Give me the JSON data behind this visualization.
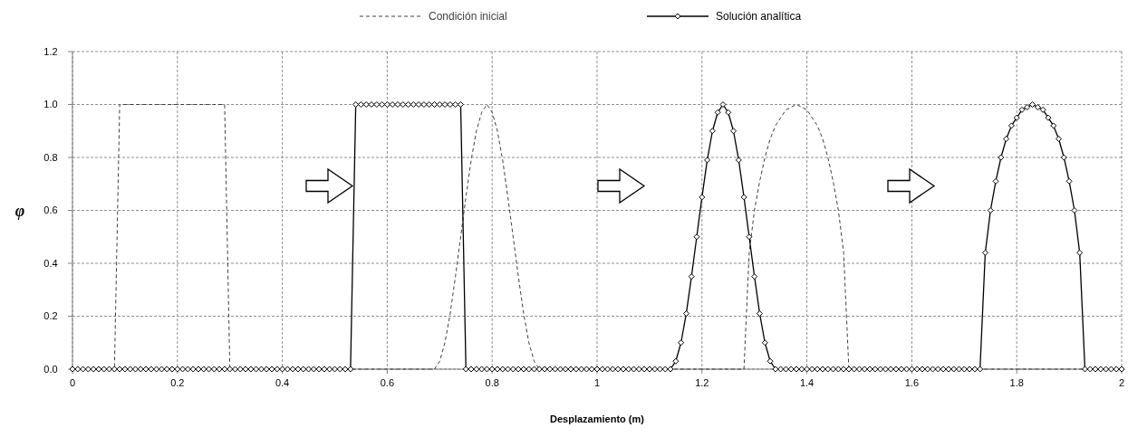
{
  "chart_data": {
    "type": "line",
    "xlabel": "Desplazamiento (m)",
    "ylabel": "φ",
    "xlim": [
      0,
      2
    ],
    "xticks": [
      0,
      0.2,
      0.4,
      0.6,
      0.8,
      1,
      1.2,
      1.4,
      1.6,
      1.8,
      2
    ],
    "ylim": [
      0,
      1.2
    ],
    "yticks": [
      {
        "value": 0,
        "label": "0.0"
      },
      0.2,
      0.4,
      0.6,
      0.8,
      {
        "value": 1,
        "label": "1.0"
      },
      {
        "value": 1.2,
        "label": "1.2"
      }
    ],
    "grid": true,
    "legend": "top",
    "series": [
      {
        "name": "Condición inicial",
        "color": "#404040",
        "line_style": "dashed",
        "marker": "none",
        "x": [
          0,
          0.08,
          0.09,
          0.29,
          0.3,
          0.69,
          0.7,
          0.71,
          0.72,
          0.73,
          0.74,
          0.75,
          0.76,
          0.77,
          0.78,
          0.79,
          0.8,
          0.81,
          0.82,
          0.83,
          0.84,
          0.85,
          0.86,
          0.87,
          0.88,
          0.89,
          1.28,
          1.29,
          1.3,
          1.31,
          1.32,
          1.33,
          1.34,
          1.35,
          1.36,
          1.37,
          1.38,
          1.39,
          1.4,
          1.41,
          1.42,
          1.43,
          1.44,
          1.45,
          1.46,
          1.47,
          1.48,
          2
        ],
        "values": [
          0,
          0,
          1,
          1,
          0,
          0,
          0.03,
          0.1,
          0.21,
          0.35,
          0.5,
          0.65,
          0.79,
          0.9,
          0.97,
          1,
          0.97,
          0.9,
          0.79,
          0.65,
          0.5,
          0.35,
          0.21,
          0.1,
          0.03,
          0,
          0,
          0.44,
          0.6,
          0.71,
          0.8,
          0.87,
          0.92,
          0.95,
          0.98,
          0.99,
          1,
          0.99,
          0.98,
          0.95,
          0.92,
          0.87,
          0.8,
          0.71,
          0.6,
          0.44,
          0,
          0
        ]
      },
      {
        "name": "Solución analítica",
        "color": "#000000",
        "line_style": "solid",
        "marker": "diamond",
        "x": [
          0,
          0.01,
          0.02,
          0.03,
          0.04,
          0.05,
          0.06,
          0.07,
          0.08,
          0.09,
          0.1,
          0.11,
          0.12,
          0.13,
          0.14,
          0.15,
          0.16,
          0.17,
          0.18,
          0.19,
          0.2,
          0.21,
          0.22,
          0.23,
          0.24,
          0.25,
          0.26,
          0.27,
          0.28,
          0.29,
          0.3,
          0.31,
          0.32,
          0.33,
          0.34,
          0.35,
          0.36,
          0.37,
          0.38,
          0.39,
          0.4,
          0.41,
          0.42,
          0.43,
          0.44,
          0.45,
          0.46,
          0.47,
          0.48,
          0.49,
          0.5,
          0.51,
          0.52,
          0.53,
          0.54,
          0.55,
          0.56,
          0.57,
          0.58,
          0.59,
          0.6,
          0.61,
          0.62,
          0.63,
          0.64,
          0.65,
          0.66,
          0.67,
          0.68,
          0.69,
          0.7,
          0.71,
          0.72,
          0.73,
          0.74,
          0.75,
          0.76,
          0.77,
          0.78,
          0.79,
          0.8,
          0.81,
          0.82,
          0.83,
          0.84,
          0.85,
          0.86,
          0.87,
          0.88,
          0.89,
          0.9,
          0.91,
          0.92,
          0.93,
          0.94,
          0.95,
          0.96,
          0.97,
          0.98,
          0.99,
          1,
          1.01,
          1.02,
          1.03,
          1.04,
          1.05,
          1.06,
          1.07,
          1.08,
          1.09,
          1.1,
          1.11,
          1.12,
          1.13,
          1.14,
          1.15,
          1.16,
          1.17,
          1.18,
          1.19,
          1.2,
          1.21,
          1.22,
          1.23,
          1.24,
          1.25,
          1.26,
          1.27,
          1.28,
          1.29,
          1.3,
          1.31,
          1.32,
          1.33,
          1.34,
          1.35,
          1.36,
          1.37,
          1.38,
          1.39,
          1.4,
          1.41,
          1.42,
          1.43,
          1.44,
          1.45,
          1.46,
          1.47,
          1.48,
          1.49,
          1.5,
          1.51,
          1.52,
          1.53,
          1.54,
          1.55,
          1.56,
          1.57,
          1.58,
          1.59,
          1.6,
          1.61,
          1.62,
          1.63,
          1.64,
          1.65,
          1.66,
          1.67,
          1.68,
          1.69,
          1.7,
          1.71,
          1.72,
          1.73,
          1.74,
          1.75,
          1.76,
          1.77,
          1.78,
          1.79,
          1.8,
          1.81,
          1.82,
          1.83,
          1.84,
          1.85,
          1.86,
          1.87,
          1.88,
          1.89,
          1.9,
          1.91,
          1.92,
          1.93,
          1.94,
          1.95,
          1.96,
          1.97,
          1.98,
          1.99,
          2
        ],
        "values": [
          0,
          0,
          0,
          0,
          0,
          0,
          0,
          0,
          0,
          0,
          0,
          0,
          0,
          0,
          0,
          0,
          0,
          0,
          0,
          0,
          0,
          0,
          0,
          0,
          0,
          0,
          0,
          0,
          0,
          0,
          0,
          0,
          0,
          0,
          0,
          0,
          0,
          0,
          0,
          0,
          0,
          0,
          0,
          0,
          0,
          0,
          0,
          0,
          0,
          0,
          0,
          0,
          0,
          0,
          1,
          1,
          1,
          1,
          1,
          1,
          1,
          1,
          1,
          1,
          1,
          1,
          1,
          1,
          1,
          1,
          1,
          1,
          1,
          1,
          1,
          0,
          0,
          0,
          0,
          0,
          0,
          0,
          0,
          0,
          0,
          0,
          0,
          0,
          0,
          0,
          0,
          0,
          0,
          0,
          0,
          0,
          0,
          0,
          0,
          0,
          0,
          0,
          0,
          0,
          0,
          0,
          0,
          0,
          0,
          0,
          0,
          0,
          0,
          0,
          0,
          0.03,
          0.1,
          0.21,
          0.35,
          0.5,
          0.65,
          0.79,
          0.9,
          0.97,
          1,
          0.97,
          0.9,
          0.79,
          0.65,
          0.5,
          0.35,
          0.21,
          0.1,
          0.03,
          0,
          0,
          0,
          0,
          0,
          0,
          0,
          0,
          0,
          0,
          0,
          0,
          0,
          0,
          0,
          0,
          0,
          0,
          0,
          0,
          0,
          0,
          0,
          0,
          0,
          0,
          0,
          0,
          0,
          0,
          0,
          0,
          0,
          0,
          0,
          0,
          0,
          0,
          0,
          0,
          0.44,
          0.6,
          0.71,
          0.8,
          0.87,
          0.92,
          0.95,
          0.98,
          0.99,
          1,
          0.99,
          0.98,
          0.95,
          0.92,
          0.87,
          0.8,
          0.71,
          0.6,
          0.44,
          0,
          0,
          0,
          0,
          0,
          0,
          0,
          0
        ]
      }
    ]
  }
}
